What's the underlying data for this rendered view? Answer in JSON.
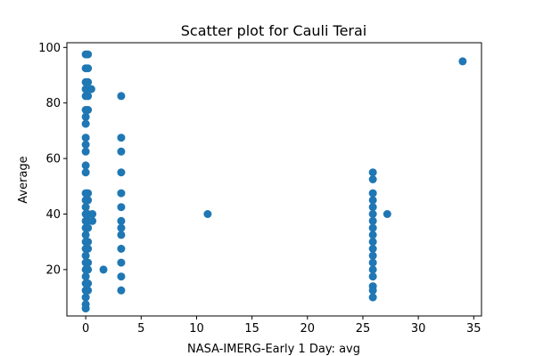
{
  "chart_data": {
    "type": "scatter",
    "title": "Scatter plot for Cauli Terai",
    "xlabel": "NASA-IMERG-Early 1 Day: avg",
    "ylabel": "Average",
    "xlim": [
      -1.7,
      35.7
    ],
    "ylim": [
      3.3,
      101.7
    ],
    "x_ticks": [
      0,
      5,
      10,
      15,
      20,
      25,
      30,
      35
    ],
    "y_ticks": [
      20,
      40,
      60,
      80,
      100
    ],
    "grid": false,
    "legend": "none",
    "marker_color": "#1f77b4",
    "points": [
      {
        "x": 0,
        "y": 97.5
      },
      {
        "x": 0,
        "y": 92.5
      },
      {
        "x": 0,
        "y": 87.5
      },
      {
        "x": 0,
        "y": 85
      },
      {
        "x": 0,
        "y": 82.5
      },
      {
        "x": 0,
        "y": 77.5
      },
      {
        "x": 0,
        "y": 75
      },
      {
        "x": 0,
        "y": 72.5
      },
      {
        "x": 0,
        "y": 67.5
      },
      {
        "x": 0,
        "y": 65
      },
      {
        "x": 0,
        "y": 62.5
      },
      {
        "x": 0,
        "y": 57.5
      },
      {
        "x": 0,
        "y": 55
      },
      {
        "x": 0,
        "y": 47.5
      },
      {
        "x": 0,
        "y": 45
      },
      {
        "x": 0,
        "y": 42.5
      },
      {
        "x": 0,
        "y": 40
      },
      {
        "x": 0,
        "y": 37.5
      },
      {
        "x": 0,
        "y": 35
      },
      {
        "x": 0,
        "y": 32.5
      },
      {
        "x": 0,
        "y": 30
      },
      {
        "x": 0,
        "y": 27.5
      },
      {
        "x": 0,
        "y": 25
      },
      {
        "x": 0,
        "y": 22.5
      },
      {
        "x": 0,
        "y": 20
      },
      {
        "x": 0,
        "y": 17.5
      },
      {
        "x": 0,
        "y": 15
      },
      {
        "x": 0,
        "y": 12.5
      },
      {
        "x": 0,
        "y": 10
      },
      {
        "x": 0,
        "y": 7.5
      },
      {
        "x": 0,
        "y": 6
      },
      {
        "x": 0.2,
        "y": 97.5
      },
      {
        "x": 0.2,
        "y": 92.5
      },
      {
        "x": 0.2,
        "y": 87.5
      },
      {
        "x": 0.2,
        "y": 82.5
      },
      {
        "x": 0.2,
        "y": 77.5
      },
      {
        "x": 0.2,
        "y": 47.5
      },
      {
        "x": 0.2,
        "y": 45
      },
      {
        "x": 0.2,
        "y": 40
      },
      {
        "x": 0.2,
        "y": 37.5
      },
      {
        "x": 0.2,
        "y": 35
      },
      {
        "x": 0.2,
        "y": 30
      },
      {
        "x": 0.2,
        "y": 27.5
      },
      {
        "x": 0.2,
        "y": 22.5
      },
      {
        "x": 0.2,
        "y": 20
      },
      {
        "x": 0.2,
        "y": 15
      },
      {
        "x": 0.2,
        "y": 12.5
      },
      {
        "x": 0.5,
        "y": 85
      },
      {
        "x": 0.6,
        "y": 40
      },
      {
        "x": 0.6,
        "y": 37.5
      },
      {
        "x": 1.6,
        "y": 20
      },
      {
        "x": 3.2,
        "y": 82.5
      },
      {
        "x": 3.2,
        "y": 67.5
      },
      {
        "x": 3.2,
        "y": 62.5
      },
      {
        "x": 3.2,
        "y": 55
      },
      {
        "x": 3.2,
        "y": 47.5
      },
      {
        "x": 3.2,
        "y": 42.5
      },
      {
        "x": 3.2,
        "y": 37.5
      },
      {
        "x": 3.2,
        "y": 35
      },
      {
        "x": 3.2,
        "y": 32.5
      },
      {
        "x": 3.2,
        "y": 27.5
      },
      {
        "x": 3.2,
        "y": 22.5
      },
      {
        "x": 3.2,
        "y": 17.5
      },
      {
        "x": 3.2,
        "y": 12.5
      },
      {
        "x": 11,
        "y": 40
      },
      {
        "x": 25.9,
        "y": 55
      },
      {
        "x": 25.9,
        "y": 52.5
      },
      {
        "x": 25.9,
        "y": 47.5
      },
      {
        "x": 25.9,
        "y": 45
      },
      {
        "x": 25.9,
        "y": 42.5
      },
      {
        "x": 25.9,
        "y": 40
      },
      {
        "x": 25.9,
        "y": 37.5
      },
      {
        "x": 25.9,
        "y": 35
      },
      {
        "x": 25.9,
        "y": 32.5
      },
      {
        "x": 25.9,
        "y": 30
      },
      {
        "x": 25.9,
        "y": 27.5
      },
      {
        "x": 25.9,
        "y": 25
      },
      {
        "x": 25.9,
        "y": 22.5
      },
      {
        "x": 25.9,
        "y": 20
      },
      {
        "x": 25.9,
        "y": 17.5
      },
      {
        "x": 25.9,
        "y": 14
      },
      {
        "x": 25.9,
        "y": 12.5
      },
      {
        "x": 25.9,
        "y": 10
      },
      {
        "x": 27.2,
        "y": 40
      },
      {
        "x": 34,
        "y": 95
      }
    ]
  }
}
